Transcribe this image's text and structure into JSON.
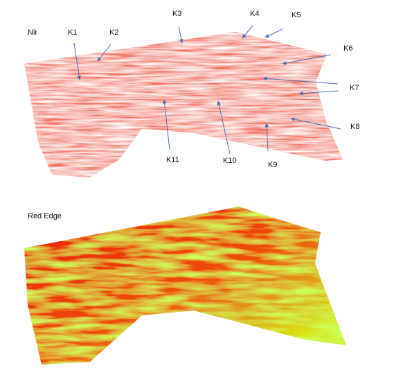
{
  "panels": [
    {
      "label": "Nir"
    },
    {
      "label": "Red Edge"
    }
  ],
  "annotations": [
    {
      "label": "K1"
    },
    {
      "label": "K2"
    },
    {
      "label": "K3"
    },
    {
      "label": "K4"
    },
    {
      "label": "K5"
    },
    {
      "label": "K6"
    },
    {
      "label": "K7"
    },
    {
      "label": "K8"
    },
    {
      "label": "K9"
    },
    {
      "label": "K10"
    },
    {
      "label": "K11"
    }
  ]
}
